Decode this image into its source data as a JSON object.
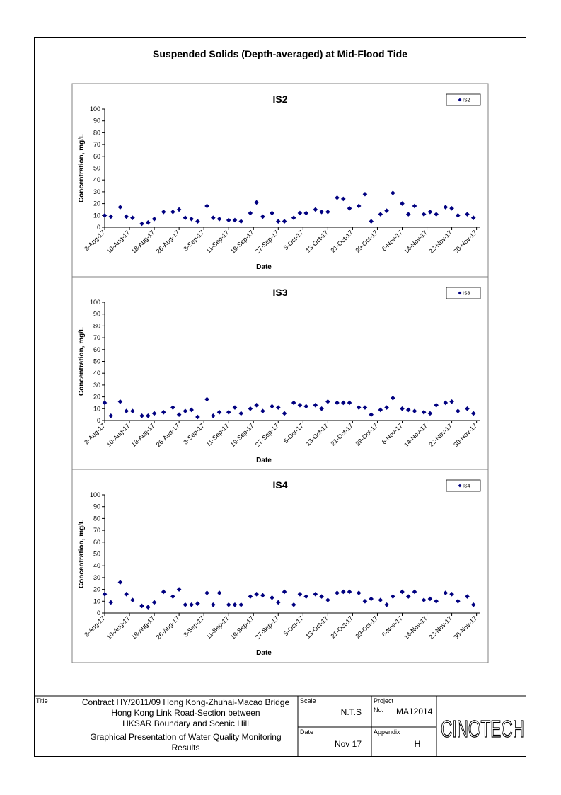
{
  "page": {
    "title": "Suspended Solids (Depth-averaged) at Mid-Flood Tide"
  },
  "chart_data": [
    {
      "type": "scatter",
      "title": "IS2",
      "xlabel": "Date",
      "ylabel": "Concentration, mg/L",
      "ylim": [
        0,
        100
      ],
      "yticks": [
        0,
        10,
        20,
        30,
        40,
        50,
        60,
        70,
        80,
        90,
        100
      ],
      "xticklabels": [
        "2-Aug-17",
        "10-Aug-17",
        "18-Aug-17",
        "26-Aug-17",
        "3-Sep-17",
        "11-Sep-17",
        "19-Sep-17",
        "27-Sep-17",
        "5-Oct-17",
        "13-Oct-17",
        "21-Oct-17",
        "29-Oct-17",
        "6-Nov-17",
        "14-Nov-17",
        "22-Nov-17",
        "30-Nov-17"
      ],
      "xlim_days": [
        0,
        121
      ],
      "legend": "top-right",
      "marker_color": "#000080",
      "series": [
        {
          "name": "IS2",
          "x": [
            "2-Aug-17",
            "4-Aug-17",
            "7-Aug-17",
            "9-Aug-17",
            "11-Aug-17",
            "14-Aug-17",
            "16-Aug-17",
            "18-Aug-17",
            "21-Aug-17",
            "24-Aug-17",
            "26-Aug-17",
            "28-Aug-17",
            "30-Aug-17",
            "1-Sep-17",
            "4-Sep-17",
            "6-Sep-17",
            "8-Sep-17",
            "11-Sep-17",
            "13-Sep-17",
            "15-Sep-17",
            "18-Sep-17",
            "20-Sep-17",
            "22-Sep-17",
            "25-Sep-17",
            "27-Sep-17",
            "29-Sep-17",
            "2-Oct-17",
            "4-Oct-17",
            "6-Oct-17",
            "9-Oct-17",
            "11-Oct-17",
            "13-Oct-17",
            "16-Oct-17",
            "18-Oct-17",
            "20-Oct-17",
            "23-Oct-17",
            "25-Oct-17",
            "27-Oct-17",
            "30-Oct-17",
            "1-Nov-17",
            "3-Nov-17",
            "6-Nov-17",
            "8-Nov-17",
            "10-Nov-17",
            "13-Nov-17",
            "15-Nov-17",
            "17-Nov-17",
            "20-Nov-17",
            "22-Nov-17",
            "24-Nov-17",
            "27-Nov-17",
            "29-Nov-17"
          ],
          "y": [
            10,
            9,
            17,
            9,
            8,
            3,
            4,
            7,
            13,
            13,
            15,
            8,
            7,
            5,
            18,
            8,
            7,
            6,
            6,
            5,
            12,
            21,
            9,
            12,
            5,
            5,
            8,
            12,
            12,
            15,
            13,
            13,
            25,
            24,
            16,
            18,
            28,
            5,
            11,
            14,
            29,
            20,
            11,
            18,
            11,
            13,
            11,
            17,
            16,
            10,
            11,
            8
          ]
        }
      ]
    },
    {
      "type": "scatter",
      "title": "IS3",
      "xlabel": "Date",
      "ylabel": "Concentration, mg/L",
      "ylim": [
        0,
        100
      ],
      "yticks": [
        0,
        10,
        20,
        30,
        40,
        50,
        60,
        70,
        80,
        90,
        100
      ],
      "xticklabels": [
        "2-Aug-17",
        "10-Aug-17",
        "18-Aug-17",
        "26-Aug-17",
        "3-Sep-17",
        "11-Sep-17",
        "19-Sep-17",
        "27-Sep-17",
        "5-Oct-17",
        "13-Oct-17",
        "21-Oct-17",
        "29-Oct-17",
        "6-Nov-17",
        "14-Nov-17",
        "22-Nov-17",
        "30-Nov-17"
      ],
      "xlim_days": [
        0,
        121
      ],
      "legend": "top-right",
      "marker_color": "#000080",
      "series": [
        {
          "name": "IS3",
          "x": [
            "2-Aug-17",
            "4-Aug-17",
            "7-Aug-17",
            "9-Aug-17",
            "11-Aug-17",
            "14-Aug-17",
            "16-Aug-17",
            "18-Aug-17",
            "21-Aug-17",
            "24-Aug-17",
            "26-Aug-17",
            "28-Aug-17",
            "30-Aug-17",
            "1-Sep-17",
            "4-Sep-17",
            "6-Sep-17",
            "8-Sep-17",
            "11-Sep-17",
            "13-Sep-17",
            "15-Sep-17",
            "18-Sep-17",
            "20-Sep-17",
            "22-Sep-17",
            "25-Sep-17",
            "27-Sep-17",
            "29-Sep-17",
            "2-Oct-17",
            "4-Oct-17",
            "6-Oct-17",
            "9-Oct-17",
            "11-Oct-17",
            "13-Oct-17",
            "16-Oct-17",
            "18-Oct-17",
            "20-Oct-17",
            "23-Oct-17",
            "25-Oct-17",
            "27-Oct-17",
            "30-Oct-17",
            "1-Nov-17",
            "3-Nov-17",
            "6-Nov-17",
            "8-Nov-17",
            "10-Nov-17",
            "13-Nov-17",
            "15-Nov-17",
            "17-Nov-17",
            "20-Nov-17",
            "22-Nov-17",
            "24-Nov-17",
            "27-Nov-17",
            "29-Nov-17"
          ],
          "y": [
            15,
            4,
            16,
            8,
            8,
            4,
            4,
            6,
            7,
            11,
            5,
            8,
            9,
            3,
            18,
            4,
            7,
            7,
            11,
            6,
            10,
            13,
            8,
            12,
            11,
            6,
            15,
            13,
            12,
            13,
            10,
            16,
            15,
            15,
            15,
            11,
            11,
            5,
            9,
            11,
            19,
            10,
            9,
            8,
            7,
            6,
            13,
            15,
            16,
            8,
            10,
            6
          ]
        }
      ]
    },
    {
      "type": "scatter",
      "title": "IS4",
      "xlabel": "Date",
      "ylabel": "Concentration, mg/L",
      "ylim": [
        0,
        100
      ],
      "yticks": [
        0,
        10,
        20,
        30,
        40,
        50,
        60,
        70,
        80,
        90,
        100
      ],
      "xticklabels": [
        "2-Aug-17",
        "10-Aug-17",
        "18-Aug-17",
        "26-Aug-17",
        "3-Sep-17",
        "11-Sep-17",
        "19-Sep-17",
        "27-Sep-17",
        "5-Oct-17",
        "13-Oct-17",
        "21-Oct-17",
        "29-Oct-17",
        "6-Nov-17",
        "14-Nov-17",
        "22-Nov-17",
        "30-Nov-17"
      ],
      "xlim_days": [
        0,
        121
      ],
      "legend": "top-right",
      "marker_color": "#000080",
      "series": [
        {
          "name": "IS4",
          "x": [
            "2-Aug-17",
            "4-Aug-17",
            "7-Aug-17",
            "9-Aug-17",
            "11-Aug-17",
            "14-Aug-17",
            "16-Aug-17",
            "18-Aug-17",
            "21-Aug-17",
            "24-Aug-17",
            "26-Aug-17",
            "28-Aug-17",
            "30-Aug-17",
            "1-Sep-17",
            "4-Sep-17",
            "6-Sep-17",
            "8-Sep-17",
            "11-Sep-17",
            "13-Sep-17",
            "15-Sep-17",
            "18-Sep-17",
            "20-Sep-17",
            "22-Sep-17",
            "25-Sep-17",
            "27-Sep-17",
            "29-Sep-17",
            "2-Oct-17",
            "4-Oct-17",
            "6-Oct-17",
            "9-Oct-17",
            "11-Oct-17",
            "13-Oct-17",
            "16-Oct-17",
            "18-Oct-17",
            "20-Oct-17",
            "23-Oct-17",
            "25-Oct-17",
            "27-Oct-17",
            "30-Oct-17",
            "1-Nov-17",
            "3-Nov-17",
            "6-Nov-17",
            "8-Nov-17",
            "10-Nov-17",
            "13-Nov-17",
            "15-Nov-17",
            "17-Nov-17",
            "20-Nov-17",
            "22-Nov-17",
            "24-Nov-17",
            "27-Nov-17",
            "29-Nov-17"
          ],
          "y": [
            16,
            9,
            26,
            16,
            11,
            6,
            5,
            9,
            18,
            14,
            20,
            7,
            7,
            8,
            17,
            7,
            17,
            7,
            7,
            7,
            14,
            16,
            15,
            13,
            9,
            18,
            7,
            16,
            14,
            16,
            14,
            11,
            17,
            18,
            18,
            17,
            10,
            12,
            11,
            7,
            14,
            18,
            14,
            18,
            11,
            12,
            10,
            17,
            16,
            10,
            14,
            7
          ]
        }
      ]
    }
  ],
  "title_block": {
    "title_label": "Title",
    "title_lines": [
      "Contract HY/2011/09 Hong Kong-Zhuhai-Macao Bridge",
      "Hong Kong Link Road-Section between",
      "HKSAR Boundary and Scenic Hill"
    ],
    "subtitle_lines": [
      "Graphical Presentation of Water Quality Monitoring",
      "Results"
    ],
    "scale_label": "Scale",
    "scale_value": "N.T.S",
    "project_label": "Project",
    "no_label": "No.",
    "project_no": "MA12014",
    "date_label": "Date",
    "date_value": "Nov 17",
    "appendix_label": "Appendix",
    "appendix_value": "H",
    "logo_text": "CINOTECH"
  }
}
